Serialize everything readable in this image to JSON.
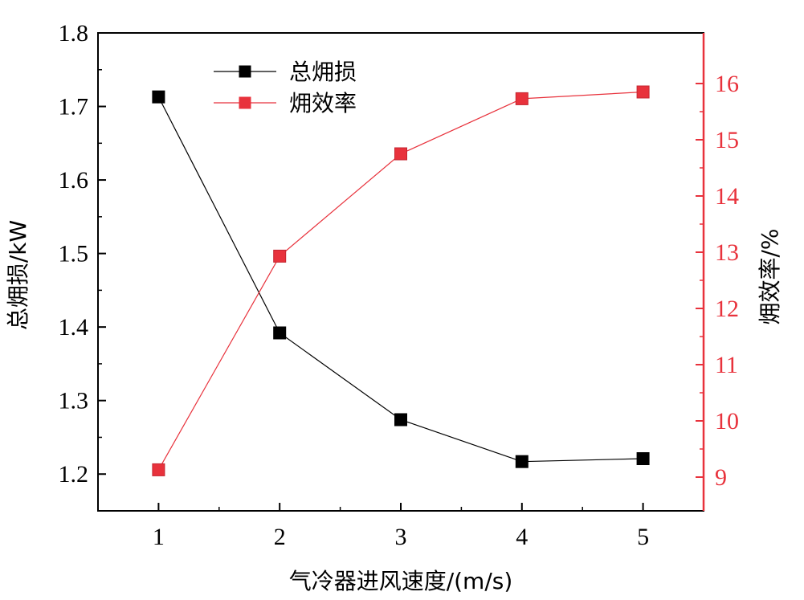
{
  "chart_data": {
    "type": "line",
    "x": [
      1,
      2,
      3,
      4,
      5
    ],
    "x_tick_labels": [
      "1",
      "2",
      "3",
      "4",
      "5"
    ],
    "xlabel": "气冷器进风速度/(m/s)",
    "xlim": [
      0.5,
      5.5
    ],
    "left_axis": {
      "label": "总㶲损/kW",
      "ylim": [
        1.15,
        1.8
      ],
      "ticks": [
        1.2,
        1.3,
        1.4,
        1.5,
        1.6,
        1.7,
        1.8
      ],
      "tick_labels": [
        "1.2",
        "1.3",
        "1.4",
        "1.5",
        "1.6",
        "1.7",
        "1.8"
      ],
      "color": "#000000"
    },
    "right_axis": {
      "label": "㶲效率/%",
      "ylim": [
        8.4,
        16.9
      ],
      "ticks": [
        9,
        10,
        11,
        12,
        13,
        14,
        15,
        16
      ],
      "tick_labels": [
        "9",
        "10",
        "11",
        "12",
        "13",
        "14",
        "15",
        "16"
      ],
      "color": "#e8323c"
    },
    "series": [
      {
        "name": "总㶲损",
        "axis": "left",
        "color": "#000000",
        "marker": "square",
        "values": [
          1.713,
          1.392,
          1.274,
          1.217,
          1.221
        ]
      },
      {
        "name": "㶲效率",
        "axis": "right",
        "color": "#e8323c",
        "marker": "square",
        "values": [
          9.13,
          12.93,
          14.75,
          15.73,
          15.85
        ]
      }
    ],
    "legend_position": "top-left",
    "grid": false
  }
}
